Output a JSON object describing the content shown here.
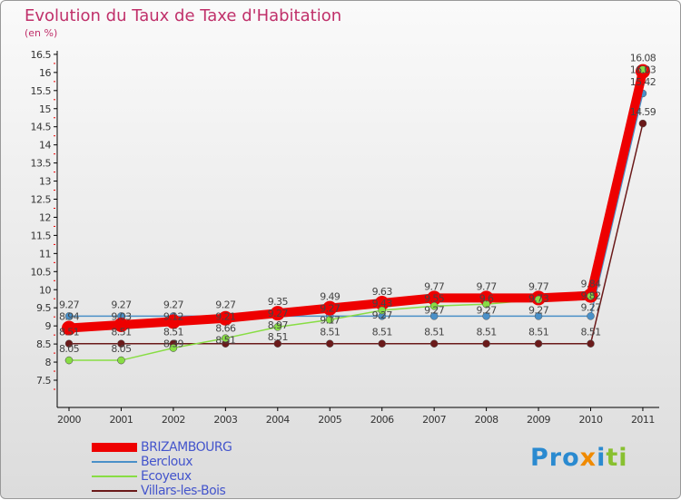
{
  "chart_data": {
    "type": "line",
    "title": "Evolution du Taux de Taxe d'Habitation",
    "subtitle": "(en %)",
    "ylim": [
      7.5,
      16.5
    ],
    "yticks": [
      "7.5",
      "8",
      "8.5",
      "9",
      "9.5",
      "10",
      "10.5",
      "11",
      "11.5",
      "12",
      "12.5",
      "13",
      "13.5",
      "14",
      "14.5",
      "15",
      "15.5",
      "16",
      "16.5"
    ],
    "x": [
      "2000",
      "2001",
      "2002",
      "2003",
      "2004",
      "2005",
      "2006",
      "2007",
      "2008",
      "2009",
      "2010",
      "2011"
    ],
    "series": [
      {
        "name": "BRIZAMBOURG",
        "color": "#ee0000",
        "values": [
          8.94,
          9.03,
          9.12,
          9.21,
          9.35,
          9.49,
          9.63,
          9.77,
          9.77,
          9.77,
          9.84,
          16.03
        ]
      },
      {
        "name": "Bercloux",
        "color": "#4a90c8",
        "values": [
          9.27,
          9.27,
          9.27,
          9.27,
          9.27,
          9.27,
          9.27,
          9.27,
          9.27,
          9.27,
          9.27,
          15.42
        ]
      },
      {
        "name": "Ecoyeux",
        "color": "#88dd44",
        "values": [
          8.05,
          8.05,
          8.39,
          8.66,
          8.97,
          9.17,
          9.43,
          9.55,
          9.6,
          9.73,
          9.82,
          16.08
        ]
      },
      {
        "name": "Villars-les-Bois",
        "color": "#6b1a1a",
        "values": [
          8.51,
          8.51,
          8.51,
          8.51,
          8.51,
          8.51,
          8.51,
          8.51,
          8.51,
          8.51,
          8.51,
          14.59
        ]
      }
    ]
  },
  "logo": "Proxiti"
}
